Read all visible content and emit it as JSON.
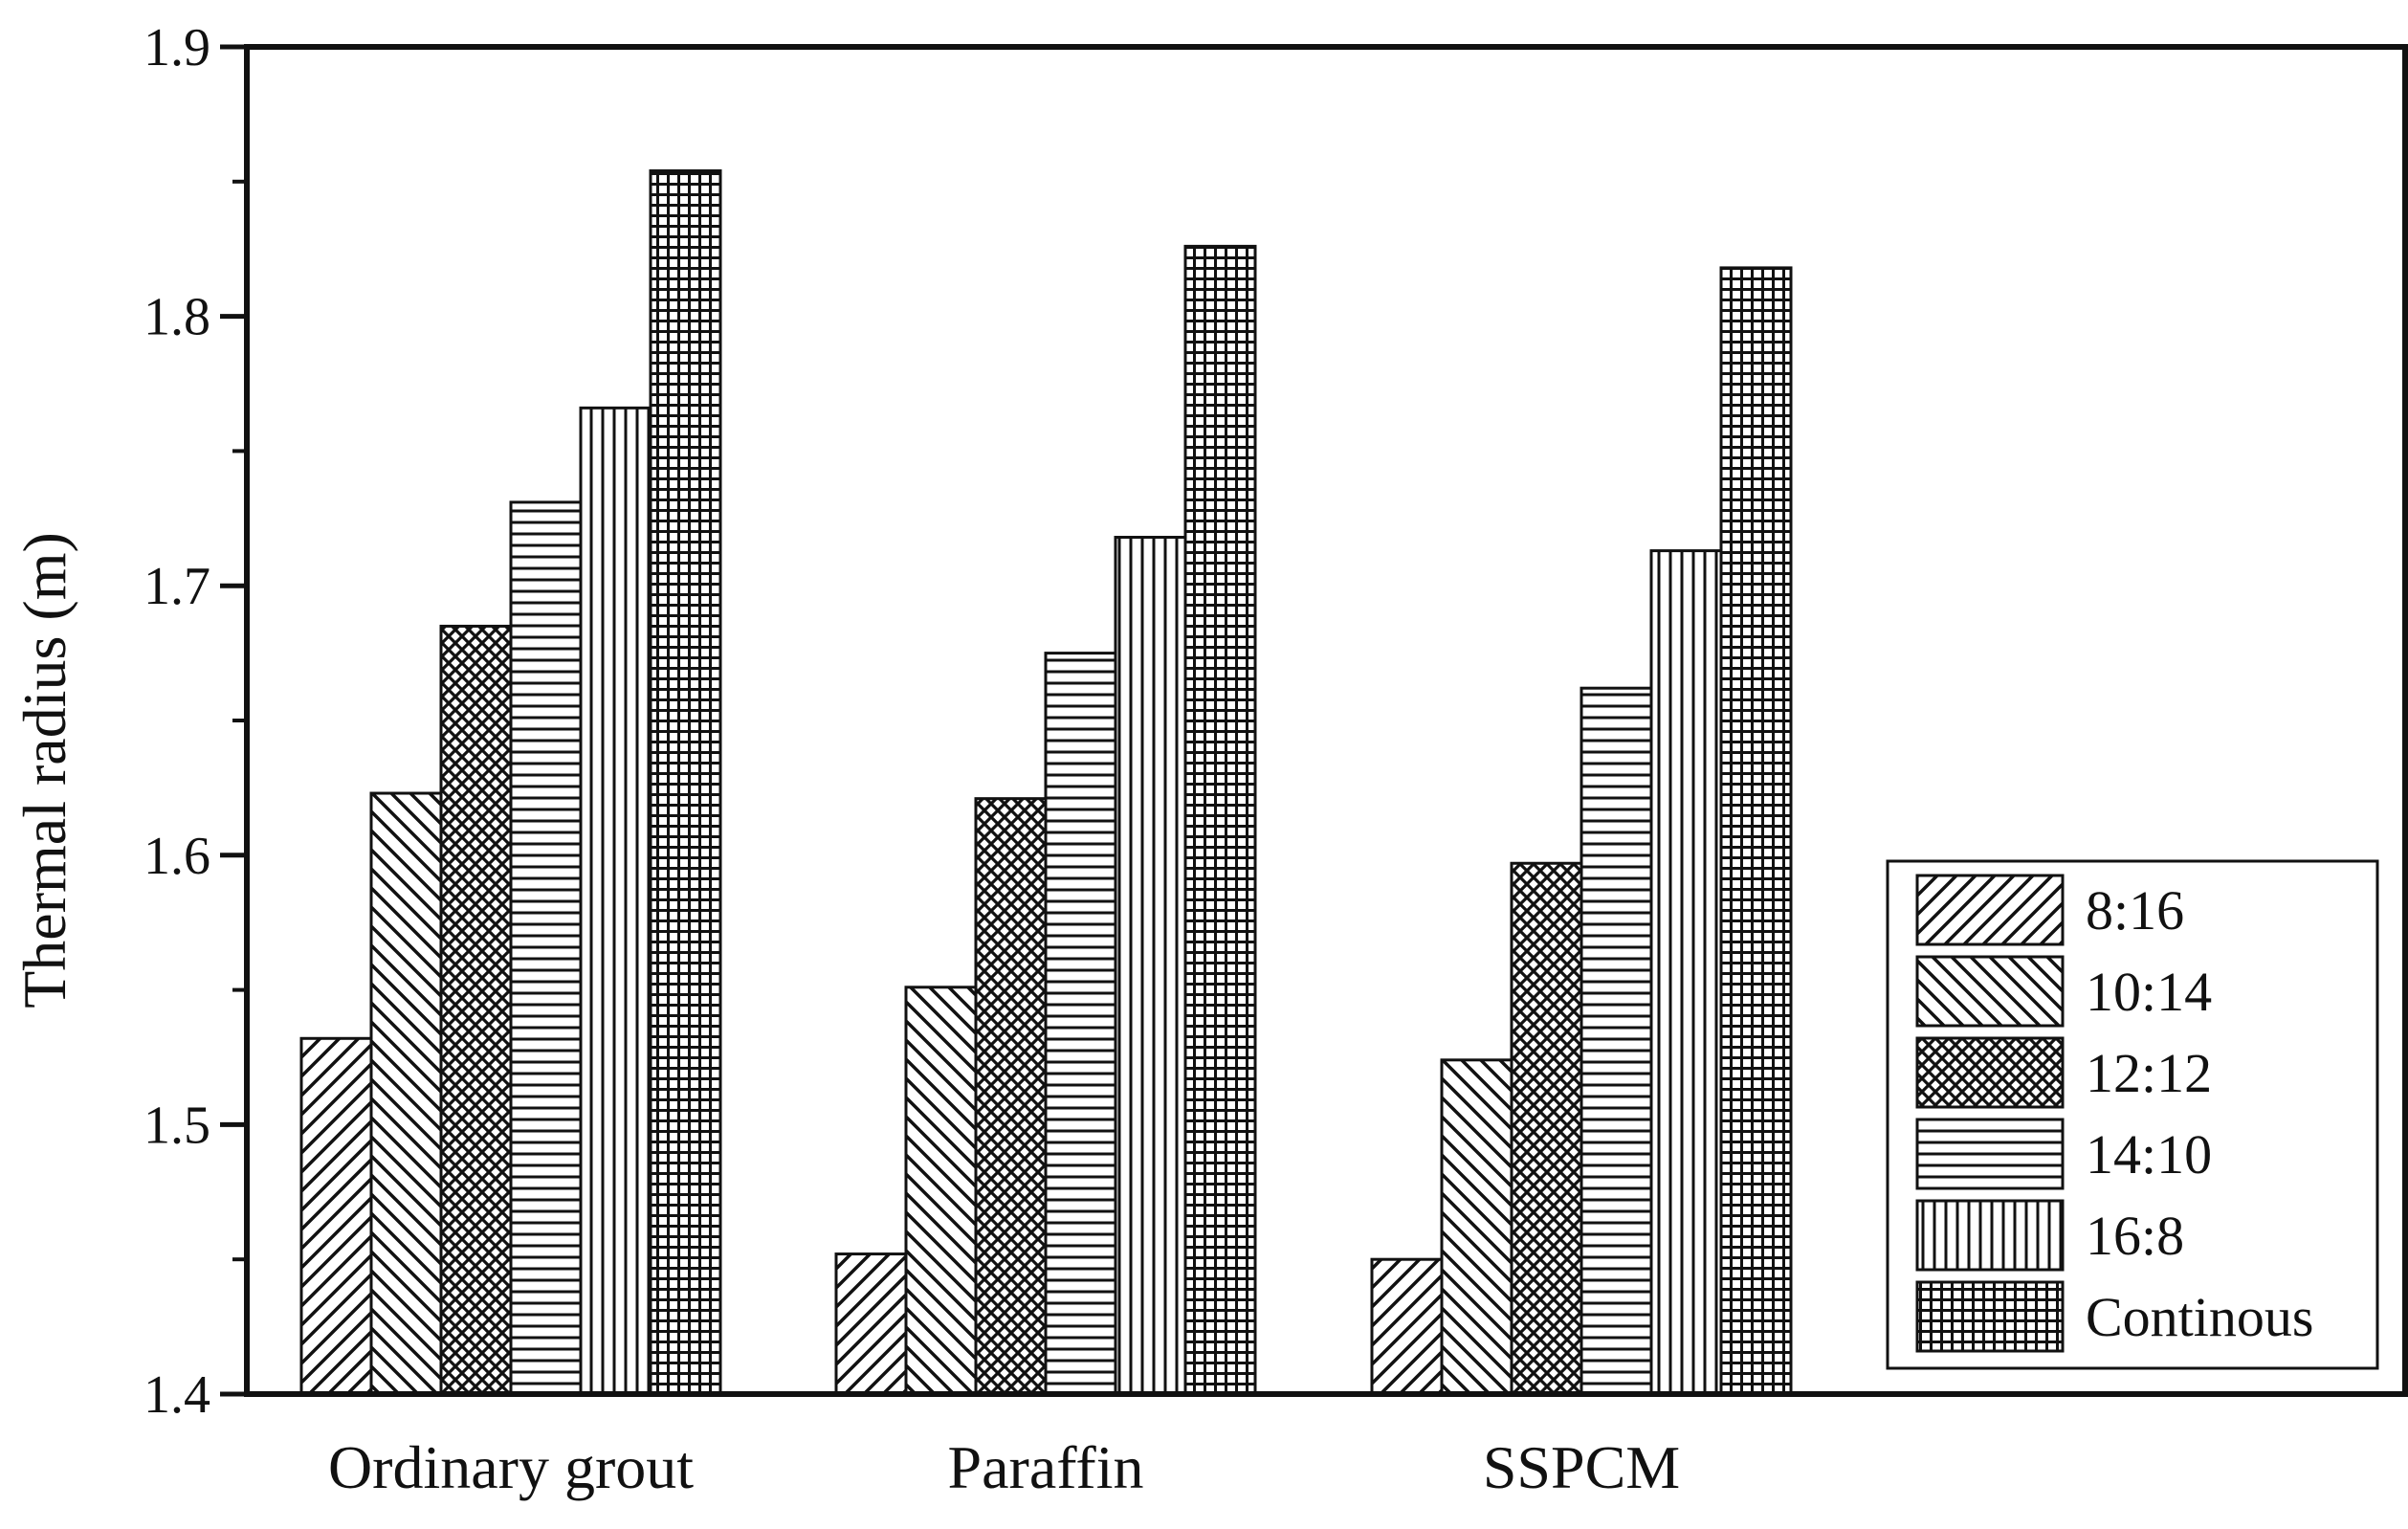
{
  "chart_data": {
    "type": "bar",
    "title": "",
    "xlabel": "",
    "ylabel": "Thermal radius (m)",
    "ylim": [
      1.4,
      1.9
    ],
    "yticks": [
      1.4,
      1.5,
      1.6,
      1.7,
      1.8,
      1.9
    ],
    "ytick_labels": [
      "1.4",
      "1.5",
      "1.6",
      "1.7",
      "1.8",
      "1.9"
    ],
    "categories": [
      "Ordinary grout",
      "Paraffin",
      "SSPCM"
    ],
    "legend_position": "bottom-right",
    "grid": false,
    "series": [
      {
        "name": "8:16",
        "pattern": "diagonal-up",
        "values": [
          1.532,
          1.452,
          1.45
        ]
      },
      {
        "name": "10:14",
        "pattern": "diagonal-down",
        "values": [
          1.623,
          1.551,
          1.524
        ]
      },
      {
        "name": "12:12",
        "pattern": "crosshatch-dense",
        "values": [
          1.685,
          1.621,
          1.597
        ]
      },
      {
        "name": "14:10",
        "pattern": "horizontal",
        "values": [
          1.731,
          1.675,
          1.662
        ]
      },
      {
        "name": "16:8",
        "pattern": "vertical",
        "values": [
          1.766,
          1.718,
          1.713
        ]
      },
      {
        "name": "Continous",
        "pattern": "grid",
        "values": [
          1.854,
          1.826,
          1.818
        ]
      }
    ]
  }
}
